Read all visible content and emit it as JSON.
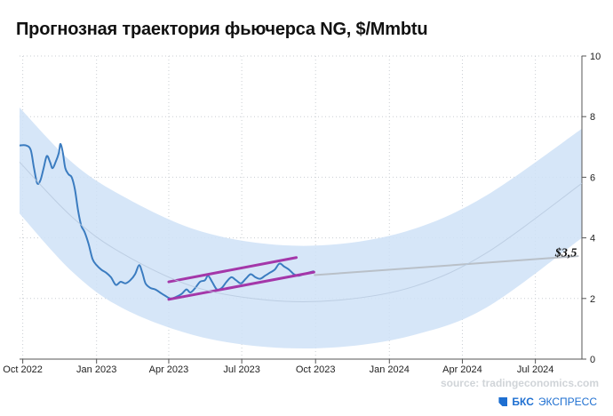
{
  "chart_data": {
    "type": "line",
    "title": "Прогнозная траектория фьючерса NG, $/Mmbtu",
    "x_ticks": [
      "Oct 2022",
      "Jan 2023",
      "Apr 2023",
      "Jul 2023",
      "Oct 2023",
      "Jan 2024",
      "Apr 2024",
      "Jul 2024"
    ],
    "y_ticks": [
      0,
      2,
      4,
      6,
      8,
      10
    ],
    "xlim": [
      "2022-09-27",
      "2024-08-28"
    ],
    "ylim": [
      0,
      10
    ],
    "y_axis_side": "right",
    "grid": true,
    "series": [
      {
        "kind": "price",
        "color": "#3b7cc0",
        "points": [
          [
            "2022-09-27",
            7.05
          ],
          [
            "2022-10-05",
            7.05
          ],
          [
            "2022-10-11",
            6.9
          ],
          [
            "2022-10-15",
            6.3
          ],
          [
            "2022-10-19",
            5.8
          ],
          [
            "2022-10-23",
            5.9
          ],
          [
            "2022-10-27",
            6.3
          ],
          [
            "2022-10-31",
            6.7
          ],
          [
            "2022-11-04",
            6.5
          ],
          [
            "2022-11-07",
            6.3
          ],
          [
            "2022-11-11",
            6.5
          ],
          [
            "2022-11-15",
            6.8
          ],
          [
            "2022-11-17",
            7.1
          ],
          [
            "2022-11-20",
            6.8
          ],
          [
            "2022-11-23",
            6.3
          ],
          [
            "2022-11-27",
            6.1
          ],
          [
            "2022-12-01",
            6.0
          ],
          [
            "2022-12-05",
            5.6
          ],
          [
            "2022-12-09",
            4.9
          ],
          [
            "2022-12-13",
            4.4
          ],
          [
            "2022-12-17",
            4.2
          ],
          [
            "2022-12-22",
            3.8
          ],
          [
            "2022-12-27",
            3.3
          ],
          [
            "2023-01-01",
            3.1
          ],
          [
            "2023-01-07",
            2.95
          ],
          [
            "2023-01-13",
            2.85
          ],
          [
            "2023-01-19",
            2.7
          ],
          [
            "2023-01-25",
            2.45
          ],
          [
            "2023-01-31",
            2.55
          ],
          [
            "2023-02-06",
            2.5
          ],
          [
            "2023-02-12",
            2.6
          ],
          [
            "2023-02-18",
            2.8
          ],
          [
            "2023-02-23",
            3.1
          ],
          [
            "2023-02-27",
            2.85
          ],
          [
            "2023-03-03",
            2.5
          ],
          [
            "2023-03-09",
            2.35
          ],
          [
            "2023-03-15",
            2.3
          ],
          [
            "2023-03-21",
            2.2
          ],
          [
            "2023-03-27",
            2.1
          ],
          [
            "2023-04-03",
            2.0
          ],
          [
            "2023-04-10",
            2.05
          ],
          [
            "2023-04-17",
            2.15
          ],
          [
            "2023-04-23",
            2.3
          ],
          [
            "2023-04-28",
            2.2
          ],
          [
            "2023-05-04",
            2.35
          ],
          [
            "2023-05-10",
            2.55
          ],
          [
            "2023-05-16",
            2.6
          ],
          [
            "2023-05-20",
            2.75
          ],
          [
            "2023-05-25",
            2.55
          ],
          [
            "2023-05-31",
            2.3
          ],
          [
            "2023-06-06",
            2.35
          ],
          [
            "2023-06-12",
            2.55
          ],
          [
            "2023-06-18",
            2.7
          ],
          [
            "2023-06-24",
            2.6
          ],
          [
            "2023-06-30",
            2.5
          ],
          [
            "2023-07-06",
            2.65
          ],
          [
            "2023-07-12",
            2.8
          ],
          [
            "2023-07-18",
            2.7
          ],
          [
            "2023-07-24",
            2.65
          ],
          [
            "2023-07-30",
            2.75
          ],
          [
            "2023-08-05",
            2.85
          ],
          [
            "2023-08-11",
            2.95
          ],
          [
            "2023-08-17",
            3.15
          ],
          [
            "2023-08-23",
            3.05
          ],
          [
            "2023-08-29",
            2.95
          ],
          [
            "2023-09-04",
            2.8
          ],
          [
            "2023-09-10",
            2.75
          ],
          [
            "2023-09-16",
            2.8
          ],
          [
            "2023-09-22",
            2.85
          ],
          [
            "2023-09-29",
            2.9
          ]
        ]
      },
      {
        "kind": "forecast",
        "color": "#b9c0c8",
        "points": [
          [
            "2023-09-29",
            2.77
          ],
          [
            "2024-08-24",
            3.4
          ]
        ]
      },
      {
        "kind": "channel-upper",
        "color": "#a437a9",
        "points": [
          [
            "2023-04-01",
            2.55
          ],
          [
            "2023-09-07",
            3.35
          ]
        ]
      },
      {
        "kind": "channel-lower",
        "color": "#a437a9",
        "points": [
          [
            "2023-04-01",
            1.97
          ],
          [
            "2023-09-29",
            2.87
          ]
        ]
      },
      {
        "kind": "band-center",
        "color": "#b7c8dd",
        "points": [
          [
            "2022-09-27",
            6.5
          ],
          [
            "2022-12-01",
            4.7
          ],
          [
            "2023-02-01",
            3.5
          ],
          [
            "2023-05-01",
            2.4
          ],
          [
            "2023-08-01",
            1.95
          ],
          [
            "2023-11-01",
            1.95
          ],
          [
            "2024-02-01",
            2.4
          ],
          [
            "2024-05-01",
            3.5
          ],
          [
            "2024-08-28",
            5.8
          ]
        ]
      }
    ],
    "band": {
      "color": "#cfe2f7",
      "upper": [
        [
          "2022-09-27",
          8.3
        ],
        [
          "2022-12-01",
          6.5
        ],
        [
          "2023-02-01",
          5.4
        ],
        [
          "2023-05-01",
          4.3
        ],
        [
          "2023-08-01",
          3.8
        ],
        [
          "2023-11-01",
          3.8
        ],
        [
          "2024-02-01",
          4.3
        ],
        [
          "2024-05-01",
          5.4
        ],
        [
          "2024-08-28",
          7.6
        ]
      ],
      "lower": [
        [
          "2022-09-27",
          4.8
        ],
        [
          "2022-12-01",
          2.9
        ],
        [
          "2023-02-01",
          1.7
        ],
        [
          "2023-05-01",
          0.8
        ],
        [
          "2023-08-01",
          0.4
        ],
        [
          "2023-11-01",
          0.4
        ],
        [
          "2024-02-01",
          0.8
        ],
        [
          "2024-05-01",
          1.7
        ],
        [
          "2024-08-28",
          4.0
        ]
      ]
    },
    "annotations": [
      {
        "text": "$3,5",
        "x": "2024-08-24",
        "y": 3.5
      }
    ],
    "source": "source: tradingeconomics.com",
    "brand": {
      "name": "БКС",
      "sub": "ЭКСПРЕСС",
      "color": "#1e6fd1"
    }
  }
}
